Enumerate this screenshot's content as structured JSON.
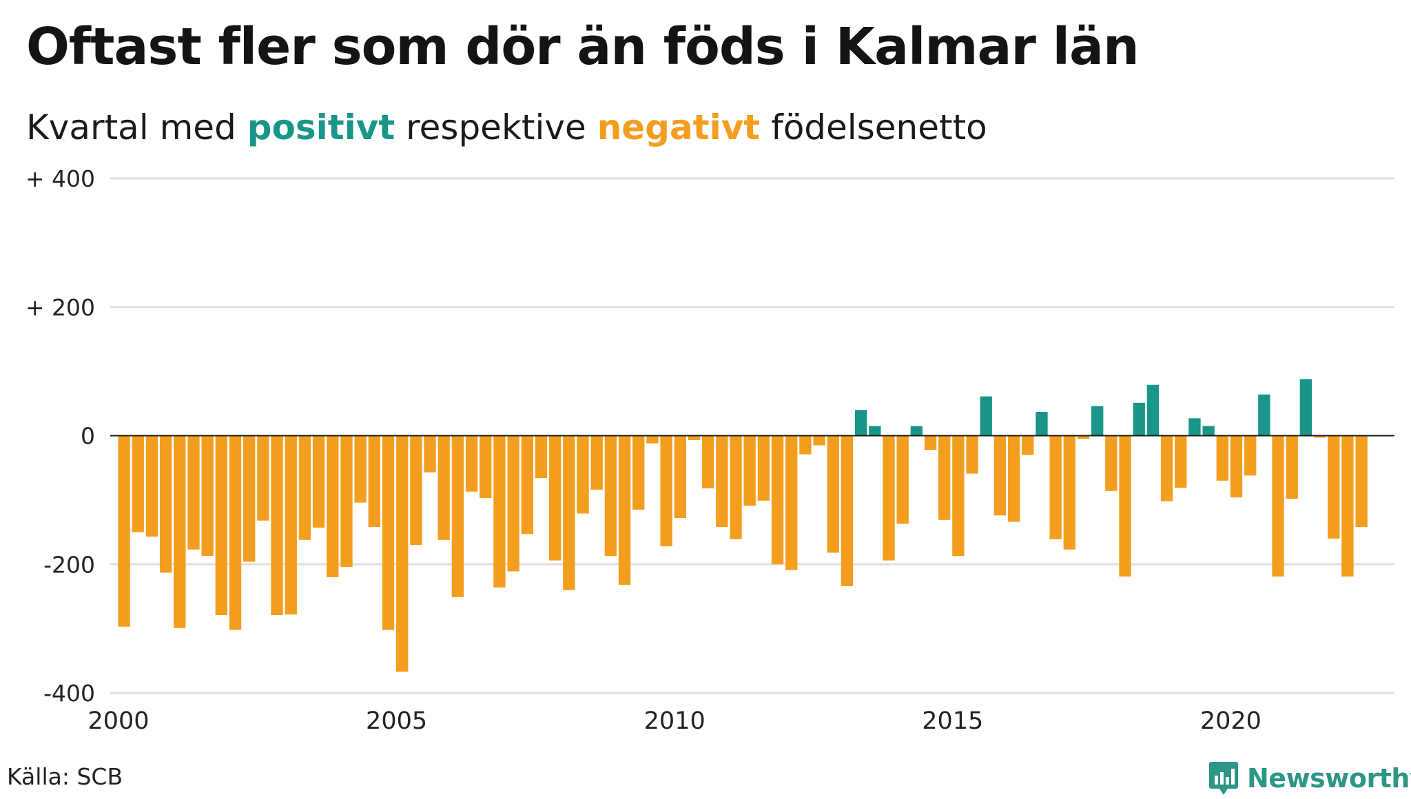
{
  "header": {
    "title": "Oftast fler som dör än föds i Kalmar län",
    "subtitle_part1": "Kvartal med ",
    "subtitle_positive": "positivt",
    "subtitle_part2": " respektive ",
    "subtitle_negative": "negativt",
    "subtitle_part3": " födelsenetto"
  },
  "footer": {
    "source": "Källa: SCB",
    "brand": "Newsworthy",
    "brand_icon": "bar-chart-bubble-icon"
  },
  "colors": {
    "positive": "#1a9688",
    "negative": "#f49e1f",
    "grid": "#dedede",
    "zero_line": "#1a1a1a",
    "brand": "#2d9685"
  },
  "chart_data": {
    "type": "bar",
    "ylim": [
      -400,
      400
    ],
    "yticks": [
      {
        "value": 400,
        "label": "+ 400"
      },
      {
        "value": 200,
        "label": "+ 200"
      },
      {
        "value": 0,
        "label": "0"
      },
      {
        "value": -200,
        "label": "-200"
      },
      {
        "value": -400,
        "label": "-400"
      }
    ],
    "xticks": [
      2000,
      2005,
      2010,
      2015,
      2020
    ],
    "grid": true,
    "start_year": 2000,
    "series": [
      {
        "values": [
          -297,
          -150,
          -157,
          -213,
          -299,
          -177,
          -187,
          -279,
          -302,
          -196,
          -132,
          -279,
          -278,
          -162,
          -143,
          -220,
          -204,
          -104,
          -142,
          -302,
          -367,
          -170,
          -57,
          -162,
          -251,
          -87,
          -97,
          -236,
          -211,
          -153,
          -66,
          -194,
          -240,
          -121,
          -84,
          -187,
          -232,
          -115,
          -12,
          -172,
          -128,
          -7,
          -82,
          -142,
          -161,
          -109,
          -101,
          -200,
          -209,
          -29,
          -15,
          -182,
          -234,
          40,
          15,
          -194,
          -137,
          15,
          -22,
          -131,
          -187,
          -59,
          61,
          -124,
          -134,
          -30,
          37,
          -161,
          -177,
          -5,
          46,
          -86,
          -219,
          51,
          79,
          -102,
          -81,
          27,
          15,
          -70,
          -96,
          -62,
          64,
          -219,
          -98,
          88,
          -3,
          -160,
          -219,
          -142
        ]
      }
    ]
  }
}
